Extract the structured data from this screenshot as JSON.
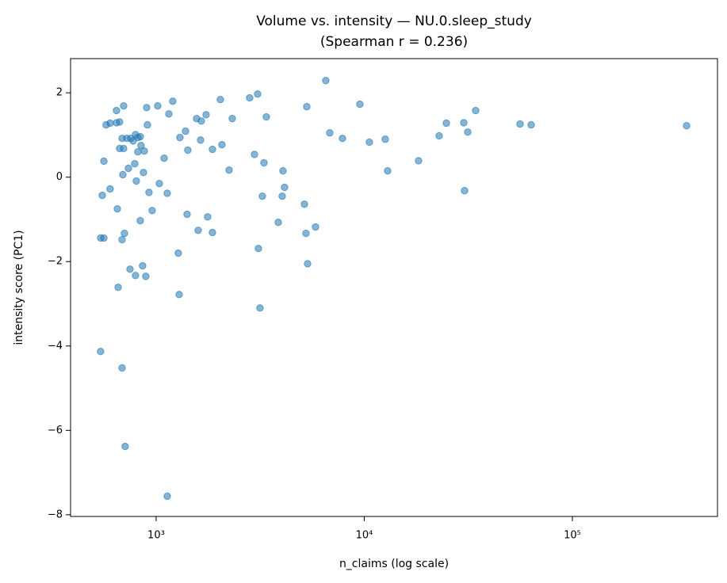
{
  "chart_data": {
    "type": "scatter",
    "title": "Volume vs. intensity — NU.0.sleep_study",
    "subtitle": "(Spearman r = 0.236)",
    "x_label": "n_claims (log scale)",
    "y_label": "intensity score (PC1)",
    "xscale": "log",
    "color": "#1f77b4",
    "xlim": [
      388,
      498000
    ],
    "ylim": [
      -8.04,
      2.81
    ],
    "xticks": [
      {
        "value": 1000,
        "label": "10³"
      },
      {
        "value": 10000,
        "label": "10⁴"
      },
      {
        "value": 100000,
        "label": "10⁵"
      }
    ],
    "yticks": [
      2,
      0,
      {
        "value": -2,
        "label": "−2"
      },
      {
        "value": -4,
        "label": "−4"
      },
      {
        "value": -6,
        "label": "−6"
      },
      {
        "value": -8,
        "label": "−8"
      }
    ],
    "x": [
      541,
      561,
      541,
      551,
      561,
      575,
      601,
      601,
      668,
      645,
      645,
      651,
      657,
      668,
      686,
      686,
      692,
      698,
      698,
      686,
      710,
      704,
      723,
      736,
      749,
      755,
      775,
      789,
      796,
      796,
      803,
      817,
      817,
      839,
      839,
      846,
      861,
      869,
      877,
      892,
      900,
      908,
      924,
      957,
      1018,
      1036,
      1092,
      1131,
      1131,
      1151,
      1202,
      1278,
      1290,
      1301,
      1384,
      1408,
      1420,
      1564,
      1592,
      1635,
      1649,
      1738,
      1768,
      1864,
      1864,
      2035,
      2071,
      2241,
      2321,
      2815,
      2968,
      3073,
      3101,
      3155,
      3239,
      3297,
      3385,
      3862,
      4034,
      4069,
      4141,
      5158,
      5248,
      5294,
      5341,
      5832,
      6535,
      6828,
      7857,
      9528,
      10587,
      12617,
      12953,
      18232,
      22909,
      24797,
      30071,
      30335,
      31421,
      34295,
      56050,
      63390,
      353800
    ],
    "y": [
      -1.44,
      -1.44,
      -4.13,
      -0.43,
      0.38,
      1.24,
      1.28,
      -0.28,
      1.31,
      1.58,
      1.29,
      -0.75,
      -2.61,
      0.68,
      0.92,
      -1.48,
      0.06,
      1.69,
      0.68,
      -4.52,
      -6.38,
      -1.33,
      0.92,
      0.21,
      -2.18,
      0.92,
      0.86,
      0.32,
      -2.33,
      1.01,
      -0.09,
      0.94,
      0.6,
      -1.03,
      0.96,
      0.75,
      -2.1,
      0.11,
      0.62,
      -2.35,
      1.65,
      1.24,
      -0.36,
      -0.79,
      1.69,
      -0.15,
      0.45,
      -0.38,
      -7.56,
      1.5,
      1.8,
      -1.8,
      -2.78,
      0.94,
      1.09,
      -0.88,
      0.64,
      1.39,
      -1.26,
      0.88,
      1.33,
      1.48,
      -0.94,
      0.66,
      -1.31,
      1.84,
      0.77,
      0.17,
      1.39,
      1.88,
      0.54,
      1.97,
      -1.69,
      -3.1,
      -0.45,
      0.34,
      1.43,
      -1.07,
      -0.45,
      0.15,
      -0.24,
      -0.64,
      -1.33,
      1.67,
      -2.05,
      -1.18,
      2.29,
      1.05,
      0.92,
      1.73,
      0.83,
      0.9,
      0.15,
      0.39,
      0.98,
      1.28,
      1.29,
      -0.32,
      1.07,
      1.58,
      1.26,
      1.24,
      1.22
    ]
  }
}
